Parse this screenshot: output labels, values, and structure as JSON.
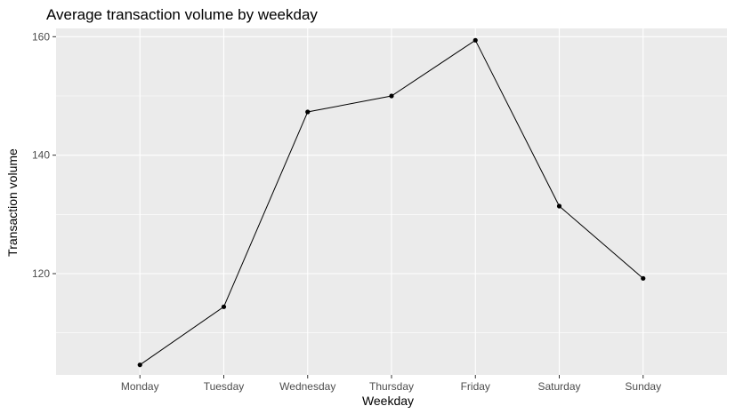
{
  "chart_data": {
    "type": "line",
    "title": "Average transaction volume by weekday",
    "xlabel": "Weekday",
    "ylabel": "Transaction volume",
    "categories": [
      "Monday",
      "Tuesday",
      "Wednesday",
      "Thursday",
      "Friday",
      "Saturday",
      "Sunday"
    ],
    "series": [
      {
        "values": [
          104.6,
          114.4,
          147.3,
          150.0,
          159.4,
          131.4,
          119.2
        ]
      }
    ],
    "ylim": [
      102.9,
      161.4
    ],
    "yticks": [
      120,
      140,
      160
    ],
    "grid": true,
    "legend": "none",
    "colors": {
      "panel_background": "#ebebeb",
      "grid_line": "#ffffff",
      "line": "#000000",
      "point": "#000000",
      "tick_label": "#4d4d4d",
      "tick_mark": "#333333"
    }
  }
}
